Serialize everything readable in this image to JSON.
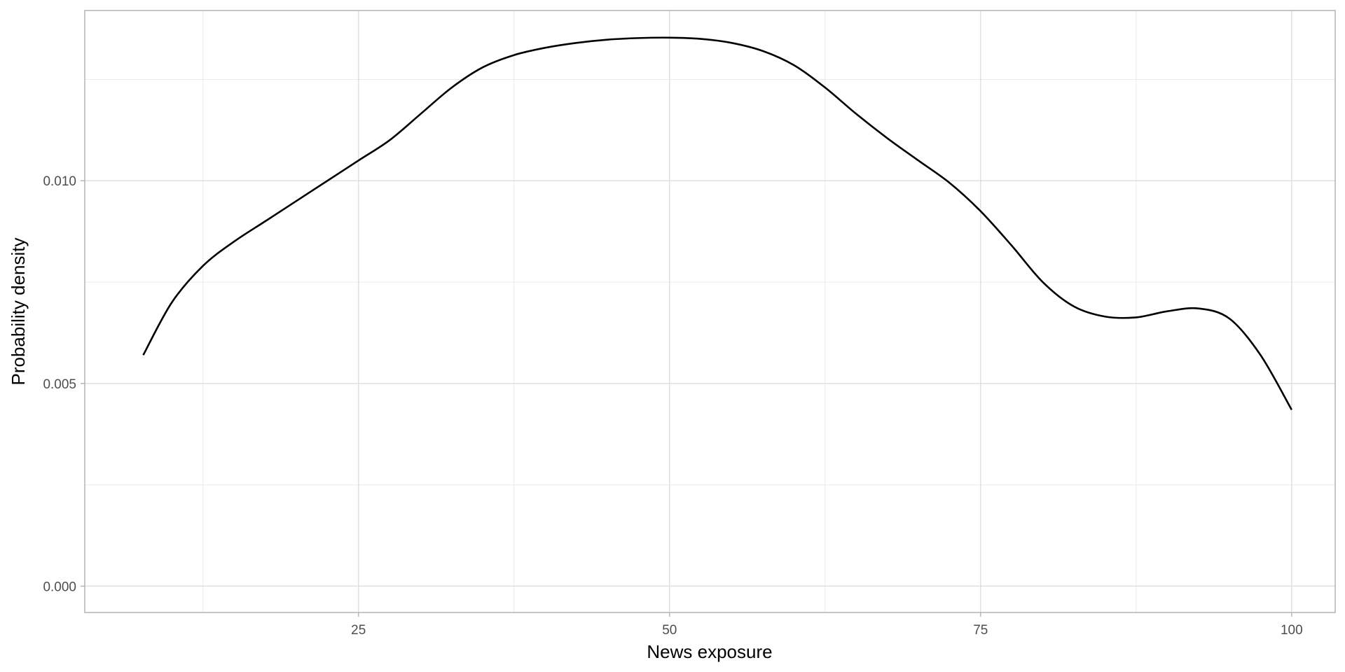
{
  "chart_data": {
    "type": "line",
    "title": "",
    "xlabel": "News exposure",
    "ylabel": "Probability density",
    "xlim": [
      3,
      103.5
    ],
    "ylim": [
      -0.00065,
      0.0142
    ],
    "x_ticks": [
      25,
      50,
      75,
      100
    ],
    "x_tick_labels": [
      "25",
      "50",
      "75",
      "100"
    ],
    "x_minor_ticks": [
      12.5,
      37.5,
      62.5,
      87.5
    ],
    "y_ticks": [
      0.0,
      0.005,
      0.01
    ],
    "y_tick_labels": [
      "0.000",
      "0.005",
      "0.010"
    ],
    "y_minor_ticks": [
      0.0025,
      0.0075,
      0.0125
    ],
    "grid": true,
    "legend": "none",
    "series": [
      {
        "color": "#000000",
        "x": [
          7.7,
          10,
          12.5,
          15,
          17.5,
          20,
          22.5,
          25,
          27.5,
          30,
          32.5,
          35,
          37.5,
          40,
          42.5,
          45,
          47.5,
          50,
          52.5,
          55,
          57.5,
          60,
          62.5,
          65,
          67.5,
          70,
          72.5,
          75,
          77.5,
          80,
          82.5,
          85,
          87.5,
          90,
          92.5,
          95,
          97.5,
          100
        ],
        "y": [
          0.0057,
          0.007,
          0.0079,
          0.0085,
          0.009,
          0.0095,
          0.01,
          0.0105,
          0.011,
          0.01165,
          0.0123,
          0.0128,
          0.0131,
          0.01328,
          0.0134,
          0.01348,
          0.01352,
          0.01353,
          0.0135,
          0.0134,
          0.0132,
          0.01285,
          0.0123,
          0.01165,
          0.01105,
          0.0105,
          0.00995,
          0.00925,
          0.0084,
          0.0075,
          0.0069,
          0.00665,
          0.00663,
          0.00678,
          0.00685,
          0.0066,
          0.0057,
          0.00435
        ]
      }
    ]
  }
}
